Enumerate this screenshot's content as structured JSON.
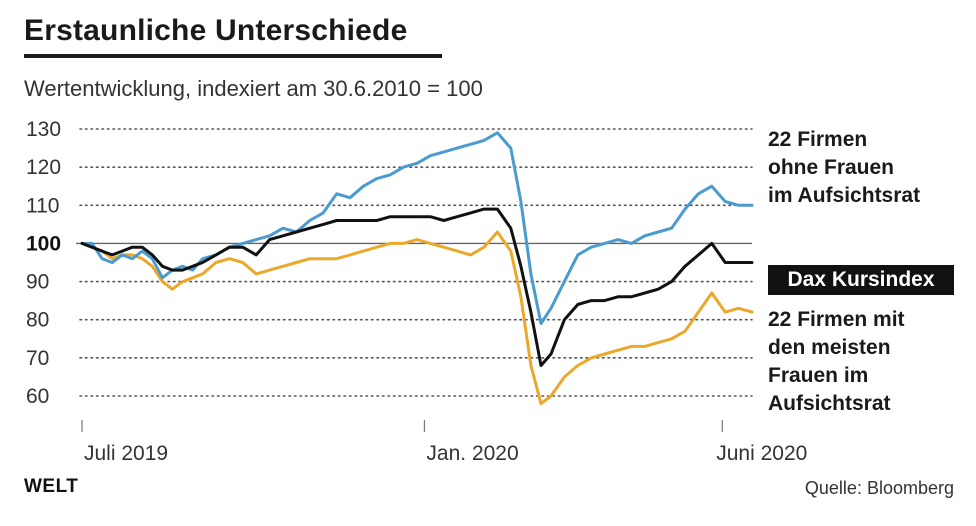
{
  "title": "Erstaunliche Unterschiede",
  "subtitle": "Wertentwicklung, indexiert am 30.6.2010 = 100",
  "source": "Quelle: Bloomberg",
  "logo": "WELT",
  "colors": {
    "blue": "#4a9bd0",
    "black": "#111111",
    "orange": "#eca82b",
    "grid": "#555555"
  },
  "chart_data": {
    "type": "line",
    "ylim": [
      55,
      131
    ],
    "yticks": [
      60,
      70,
      80,
      90,
      100,
      110,
      120,
      130
    ],
    "xticks": [
      {
        "label": "Juli 2019",
        "x": 0
      },
      {
        "label": "Jan. 2020",
        "x": 0.5111
      },
      {
        "label": "Juni 2020",
        "x": 0.9556
      }
    ],
    "x_range": [
      0,
      1
    ],
    "reference_line": 100,
    "grid": "dotted horizontal",
    "series": [
      {
        "name": "22 Firmen ohne Frauen im Aufsichtsrat",
        "color": "blue",
        "x": [
          0,
          0.015,
          0.03,
          0.045,
          0.06,
          0.075,
          0.09,
          0.105,
          0.12,
          0.135,
          0.15,
          0.165,
          0.18,
          0.2,
          0.22,
          0.24,
          0.26,
          0.28,
          0.3,
          0.32,
          0.34,
          0.36,
          0.38,
          0.4,
          0.42,
          0.44,
          0.46,
          0.48,
          0.5,
          0.52,
          0.54,
          0.56,
          0.58,
          0.6,
          0.62,
          0.64,
          0.655,
          0.67,
          0.685,
          0.7,
          0.72,
          0.74,
          0.76,
          0.78,
          0.8,
          0.82,
          0.84,
          0.86,
          0.88,
          0.9,
          0.92,
          0.94,
          0.96,
          0.98,
          1.0
        ],
        "y": [
          100,
          100,
          96,
          95,
          97,
          96,
          98,
          96,
          91,
          93,
          94,
          93,
          96,
          97,
          99,
          100,
          101,
          102,
          104,
          103,
          106,
          108,
          113,
          112,
          115,
          117,
          118,
          120,
          121,
          123,
          124,
          125,
          126,
          127,
          129,
          125,
          111,
          92,
          79,
          83,
          90,
          97,
          99,
          100,
          101,
          100,
          102,
          103,
          104,
          109,
          113,
          115,
          111,
          110,
          110
        ]
      },
      {
        "name": "Dax Kursindex",
        "color": "black",
        "x": [
          0,
          0.015,
          0.03,
          0.045,
          0.06,
          0.075,
          0.09,
          0.105,
          0.12,
          0.135,
          0.15,
          0.165,
          0.18,
          0.2,
          0.22,
          0.24,
          0.26,
          0.28,
          0.3,
          0.32,
          0.34,
          0.36,
          0.38,
          0.4,
          0.42,
          0.44,
          0.46,
          0.48,
          0.5,
          0.52,
          0.54,
          0.56,
          0.58,
          0.6,
          0.62,
          0.64,
          0.655,
          0.67,
          0.685,
          0.7,
          0.72,
          0.74,
          0.76,
          0.78,
          0.8,
          0.82,
          0.84,
          0.86,
          0.88,
          0.9,
          0.92,
          0.94,
          0.96,
          0.98,
          1.0
        ],
        "y": [
          100,
          99,
          98,
          97,
          98,
          99,
          99,
          97,
          94,
          93,
          93,
          94,
          95,
          97,
          99,
          99,
          97,
          101,
          102,
          103,
          104,
          105,
          106,
          106,
          106,
          106,
          107,
          107,
          107,
          107,
          106,
          107,
          108,
          109,
          109,
          104,
          94,
          82,
          68,
          71,
          80,
          84,
          85,
          85,
          86,
          86,
          87,
          88,
          90,
          94,
          97,
          100,
          95,
          95,
          95
        ]
      },
      {
        "name": "22 Firmen mit den meisten Frauen im Aufsichtsrat",
        "color": "orange",
        "x": [
          0,
          0.015,
          0.03,
          0.045,
          0.06,
          0.075,
          0.09,
          0.105,
          0.12,
          0.135,
          0.15,
          0.165,
          0.18,
          0.2,
          0.22,
          0.24,
          0.26,
          0.28,
          0.3,
          0.32,
          0.34,
          0.36,
          0.38,
          0.4,
          0.42,
          0.44,
          0.46,
          0.48,
          0.5,
          0.52,
          0.54,
          0.56,
          0.58,
          0.6,
          0.62,
          0.64,
          0.655,
          0.67,
          0.685,
          0.7,
          0.72,
          0.74,
          0.76,
          0.78,
          0.8,
          0.82,
          0.84,
          0.86,
          0.88,
          0.9,
          0.92,
          0.94,
          0.96,
          0.98,
          1.0
        ],
        "y": [
          100,
          99,
          98,
          96,
          97,
          97,
          96,
          94,
          90,
          88,
          90,
          91,
          92,
          95,
          96,
          95,
          92,
          93,
          94,
          95,
          96,
          96,
          96,
          97,
          98,
          99,
          100,
          100,
          101,
          100,
          99,
          98,
          97,
          99,
          103,
          98,
          86,
          68,
          58,
          60,
          65,
          68,
          70,
          71,
          72,
          73,
          73,
          74,
          75,
          77,
          82,
          87,
          82,
          83,
          82
        ]
      }
    ]
  },
  "labels": {
    "blue": [
      "22 Firmen",
      "ohne Frauen",
      "im Aufsichtsrat"
    ],
    "black": "Dax Kursindex",
    "orange": [
      "22 Firmen mit",
      "den meisten",
      "Frauen im",
      "Aufsichtsrat"
    ]
  }
}
